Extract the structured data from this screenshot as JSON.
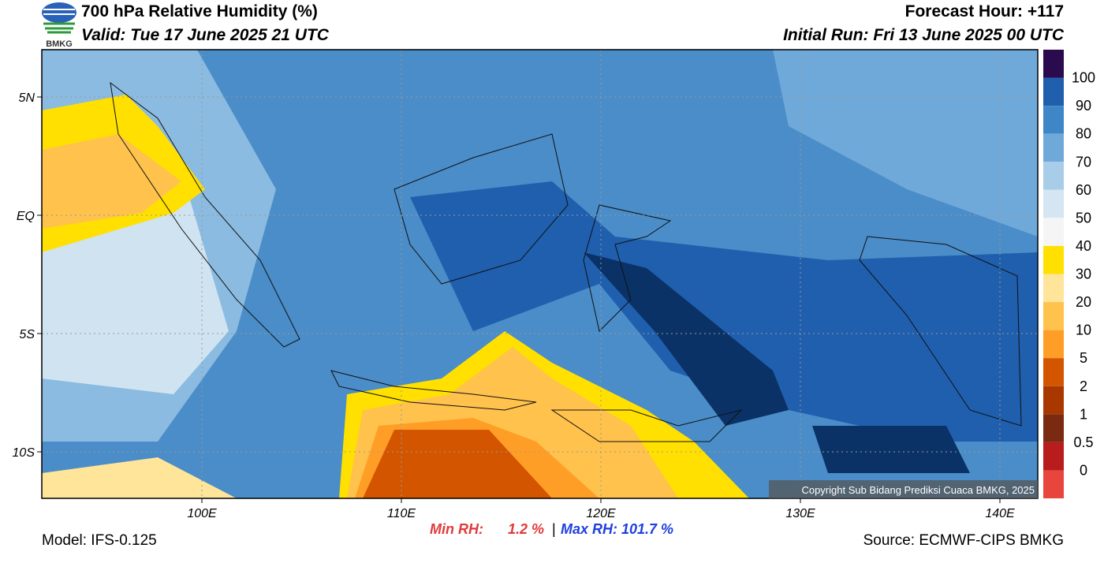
{
  "header": {
    "logo": "BMKG",
    "title": "700 hPa Relative Humidity (%)",
    "valid": "Valid: Tue 17 June 2025 21 UTC",
    "forecast": "Forecast Hour: +117",
    "initial_run": "Initial Run: Fri 13 June 2025 00 UTC"
  },
  "map": {
    "lat_labels": [
      "5N",
      "EQ",
      "5S",
      "10S"
    ],
    "lon_labels": [
      "100E",
      "110E",
      "120E",
      "130E",
      "140E"
    ],
    "copyright": "Copyright Sub Bidang Prediksi Cuaca BMKG, 2025"
  },
  "colorbar": {
    "labels": [
      "100",
      "90",
      "80",
      "70",
      "60",
      "50",
      "40",
      "30",
      "20",
      "10",
      "5",
      "2",
      "1",
      "0.5",
      "0"
    ],
    "colors": [
      "#2a0b4d",
      "#0b3266",
      "#1f5fae",
      "#3f86c6",
      "#6fa9d9",
      "#a7cde8",
      "#d5e6f2",
      "#f5f5f5",
      "#ffe000",
      "#ffe599",
      "#ffc24d",
      "#ff9e26",
      "#d45500",
      "#a83800",
      "#7a2a10",
      "#b81c1c",
      "#e8453c"
    ]
  },
  "footer": {
    "model": "Model: IFS-0.125",
    "min_label": "Min RH:",
    "min_value": "1.2 %",
    "separator": "|",
    "max": "Max RH: 101.7 %",
    "source": "Source: ECMWF-CIPS BMKG"
  }
}
